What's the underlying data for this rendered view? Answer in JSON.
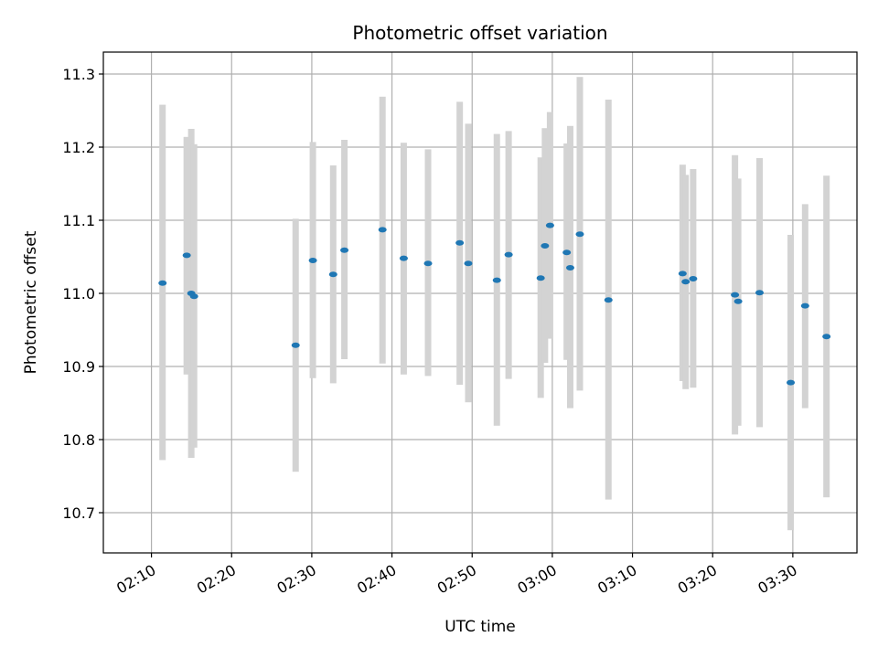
{
  "chart_data": {
    "type": "scatter",
    "title": "Photometric offset variation",
    "xlabel": "UTC time",
    "ylabel": "Photometric offset",
    "xlim": [
      "02:04",
      "03:38"
    ],
    "ylim": [
      10.645,
      11.33
    ],
    "grid": true,
    "xticks": [
      "02:10",
      "02:20",
      "02:30",
      "02:40",
      "02:50",
      "03:00",
      "03:10",
      "03:20",
      "03:30"
    ],
    "yticks": [
      "10.7",
      "10.8",
      "10.9",
      "11.0",
      "11.1",
      "11.2",
      "11.3"
    ],
    "series": [
      {
        "marker_color": "#1f77b4",
        "error_color": "#d3d3d3",
        "points": [
          {
            "x": "02:11:23",
            "y": 11.014,
            "ylow": 10.772,
            "yhigh": 11.258
          },
          {
            "x": "02:14:24",
            "y": 11.052,
            "ylow": 10.889,
            "yhigh": 11.214
          },
          {
            "x": "02:14:58",
            "y": 11.0,
            "ylow": 10.775,
            "yhigh": 11.225
          },
          {
            "x": "02:15:19",
            "y": 10.996,
            "ylow": 10.789,
            "yhigh": 11.204
          },
          {
            "x": "02:27:59",
            "y": 10.929,
            "ylow": 10.756,
            "yhigh": 11.102
          },
          {
            "x": "02:30:08",
            "y": 11.045,
            "ylow": 10.884,
            "yhigh": 11.207
          },
          {
            "x": "02:32:40",
            "y": 11.026,
            "ylow": 10.877,
            "yhigh": 11.175
          },
          {
            "x": "02:34:04",
            "y": 11.059,
            "ylow": 10.91,
            "yhigh": 11.21
          },
          {
            "x": "02:38:49",
            "y": 11.087,
            "ylow": 10.904,
            "yhigh": 11.269
          },
          {
            "x": "02:41:28",
            "y": 11.048,
            "ylow": 10.889,
            "yhigh": 11.206
          },
          {
            "x": "02:44:30",
            "y": 11.041,
            "ylow": 10.887,
            "yhigh": 11.197
          },
          {
            "x": "02:48:27",
            "y": 11.069,
            "ylow": 10.875,
            "yhigh": 11.262
          },
          {
            "x": "02:49:31",
            "y": 11.041,
            "ylow": 10.851,
            "yhigh": 11.232
          },
          {
            "x": "02:53:05",
            "y": 11.018,
            "ylow": 10.819,
            "yhigh": 11.218
          },
          {
            "x": "02:54:33",
            "y": 11.053,
            "ylow": 10.883,
            "yhigh": 11.222
          },
          {
            "x": "02:58:33",
            "y": 11.021,
            "ylow": 10.857,
            "yhigh": 11.186
          },
          {
            "x": "02:59:05",
            "y": 11.065,
            "ylow": 10.905,
            "yhigh": 11.226
          },
          {
            "x": "02:59:43",
            "y": 11.093,
            "ylow": 10.938,
            "yhigh": 11.248
          },
          {
            "x": "03:01:48",
            "y": 11.056,
            "ylow": 10.909,
            "yhigh": 11.205
          },
          {
            "x": "03:02:14",
            "y": 11.035,
            "ylow": 10.843,
            "yhigh": 11.229
          },
          {
            "x": "03:03:26",
            "y": 11.081,
            "ylow": 10.867,
            "yhigh": 11.296
          },
          {
            "x": "03:07:00",
            "y": 10.991,
            "ylow": 10.718,
            "yhigh": 11.265
          },
          {
            "x": "03:16:15",
            "y": 11.027,
            "ylow": 10.88,
            "yhigh": 11.176
          },
          {
            "x": "03:16:38",
            "y": 11.016,
            "ylow": 10.869,
            "yhigh": 11.162
          },
          {
            "x": "03:17:34",
            "y": 11.02,
            "ylow": 10.871,
            "yhigh": 11.17
          },
          {
            "x": "03:22:47",
            "y": 10.998,
            "ylow": 10.807,
            "yhigh": 11.189
          },
          {
            "x": "03:23:11",
            "y": 10.989,
            "ylow": 10.819,
            "yhigh": 11.157
          },
          {
            "x": "03:25:51",
            "y": 11.001,
            "ylow": 10.817,
            "yhigh": 11.185
          },
          {
            "x": "03:29:44",
            "y": 10.878,
            "ylow": 10.676,
            "yhigh": 11.08
          },
          {
            "x": "03:31:32",
            "y": 10.983,
            "ylow": 10.843,
            "yhigh": 11.122
          },
          {
            "x": "03:34:12",
            "y": 10.941,
            "ylow": 10.721,
            "yhigh": 11.161
          }
        ]
      }
    ]
  }
}
